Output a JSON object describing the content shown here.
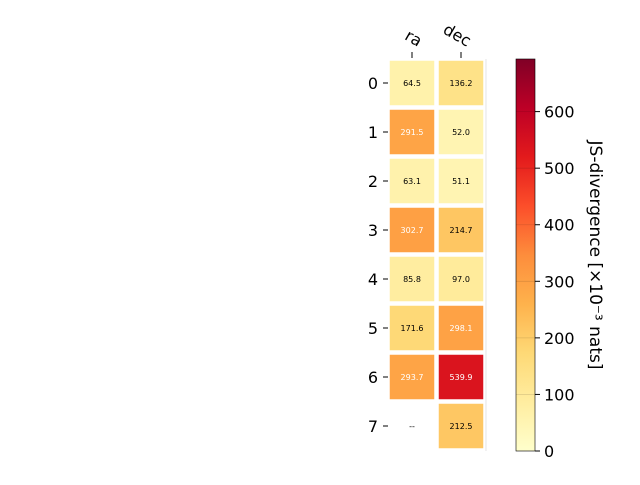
{
  "chart_data": {
    "type": "heatmap",
    "columns": [
      "ra",
      "dec"
    ],
    "rows": [
      "0",
      "1",
      "2",
      "3",
      "4",
      "5",
      "6",
      "7"
    ],
    "values": [
      [
        64.5,
        136.2
      ],
      [
        291.5,
        52.0
      ],
      [
        63.1,
        51.1
      ],
      [
        302.7,
        214.7
      ],
      [
        85.8,
        97.0
      ],
      [
        171.6,
        298.1
      ],
      [
        293.7,
        539.9
      ],
      [
        null,
        212.5
      ]
    ],
    "cell_labels": [
      [
        "64.5",
        "136.2"
      ],
      [
        "291.5",
        "52.0"
      ],
      [
        "63.1",
        "51.1"
      ],
      [
        "302.7",
        "214.7"
      ],
      [
        "85.8",
        "97.0"
      ],
      [
        "171.6",
        "298.1"
      ],
      [
        "293.7",
        "539.9"
      ],
      [
        "--",
        "212.5"
      ]
    ],
    "colorbar": {
      "label": "JS-divergence [×10⁻³ nats]",
      "range": [
        0,
        693
      ],
      "ticks": [
        0,
        100,
        200,
        300,
        400,
        500,
        600
      ],
      "colormap": "YlOrRd"
    },
    "colors": {
      "text_dark": "#000000",
      "text_light": "#ffffff",
      "cell_border": "#ffffff",
      "axis": "#000000"
    }
  }
}
